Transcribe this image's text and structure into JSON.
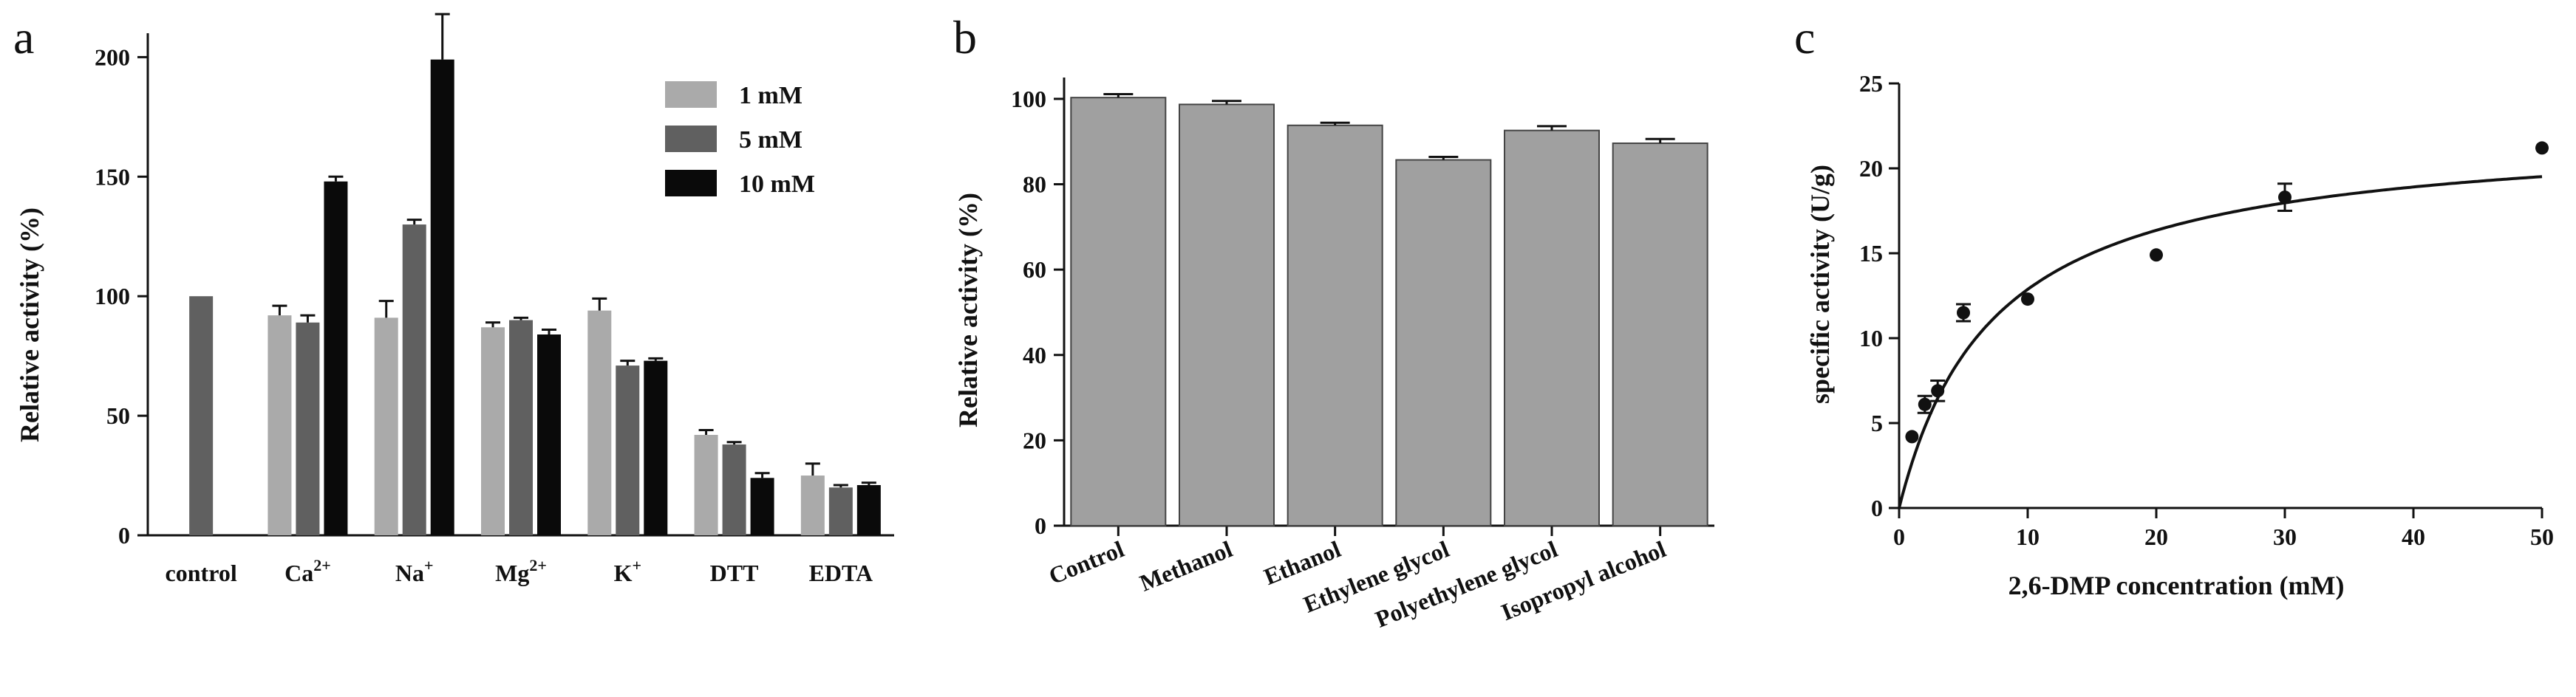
{
  "chart_data": [
    {
      "panel": "a",
      "type": "bar",
      "ylabel": "Relative activity (%)",
      "ylim": [
        0,
        210
      ],
      "yticks": [
        0,
        50,
        100,
        150,
        200
      ],
      "legend_position": "top-right",
      "categories": [
        {
          "base": "control",
          "sup": ""
        },
        {
          "base": "Ca",
          "sup": "2+"
        },
        {
          "base": "Na",
          "sup": "+"
        },
        {
          "base": "Mg",
          "sup": "2+"
        },
        {
          "base": "K",
          "sup": "+"
        },
        {
          "base": "DTT",
          "sup": ""
        },
        {
          "base": "EDTA",
          "sup": ""
        }
      ],
      "control_value": 100,
      "series": [
        {
          "name": "1 mM",
          "color": "#aaaaaa",
          "values": [
            null,
            92,
            91,
            87,
            94,
            42,
            25
          ],
          "errors": [
            null,
            4,
            7,
            2,
            5,
            2,
            5
          ]
        },
        {
          "name": "5 mM",
          "color": "#606060",
          "values": [
            null,
            89,
            130,
            90,
            71,
            38,
            20
          ],
          "errors": [
            null,
            3,
            2,
            1,
            2,
            1,
            1
          ]
        },
        {
          "name": "10 mM",
          "color": "#0a0a0a",
          "values": [
            null,
            148,
            199,
            84,
            73,
            24,
            21
          ],
          "errors": [
            null,
            2,
            19,
            2,
            1,
            2,
            1
          ]
        }
      ]
    },
    {
      "panel": "b",
      "type": "bar",
      "ylabel": "Relative activity (%)",
      "ylim": [
        0,
        105
      ],
      "yticks": [
        0,
        20,
        40,
        60,
        80,
        100
      ],
      "categories": [
        "Control",
        "Methanol",
        "Ethanol",
        "Ethylene glycol",
        "Polyethylene glycol",
        "Isopropyl alcohol"
      ],
      "values": [
        100.3,
        98.7,
        93.8,
        85.7,
        92.6,
        89.6
      ],
      "errors": [
        0.8,
        0.8,
        0.6,
        0.7,
        1.0,
        1.0
      ],
      "color": "#a0a0a0"
    },
    {
      "panel": "c",
      "type": "scatter",
      "xlabel": "2,6-DMP concentration (mM)",
      "ylabel": "specific activity (U/g)",
      "xlim": [
        0,
        50
      ],
      "ylim": [
        0,
        25
      ],
      "xticks": [
        0,
        10,
        20,
        30,
        40,
        50
      ],
      "yticks": [
        0,
        5,
        10,
        15,
        20,
        25
      ],
      "x": [
        1,
        2,
        3,
        5,
        10,
        20,
        30,
        50
      ],
      "y": [
        4.2,
        6.1,
        6.9,
        11.5,
        12.3,
        14.9,
        18.3,
        21.2
      ],
      "errors": [
        0,
        0.5,
        0.6,
        0.5,
        0,
        0,
        0.8,
        0
      ],
      "fit": {
        "model": "Michaelis-Menten",
        "vmax": 22.4,
        "km": 7.4
      }
    }
  ]
}
